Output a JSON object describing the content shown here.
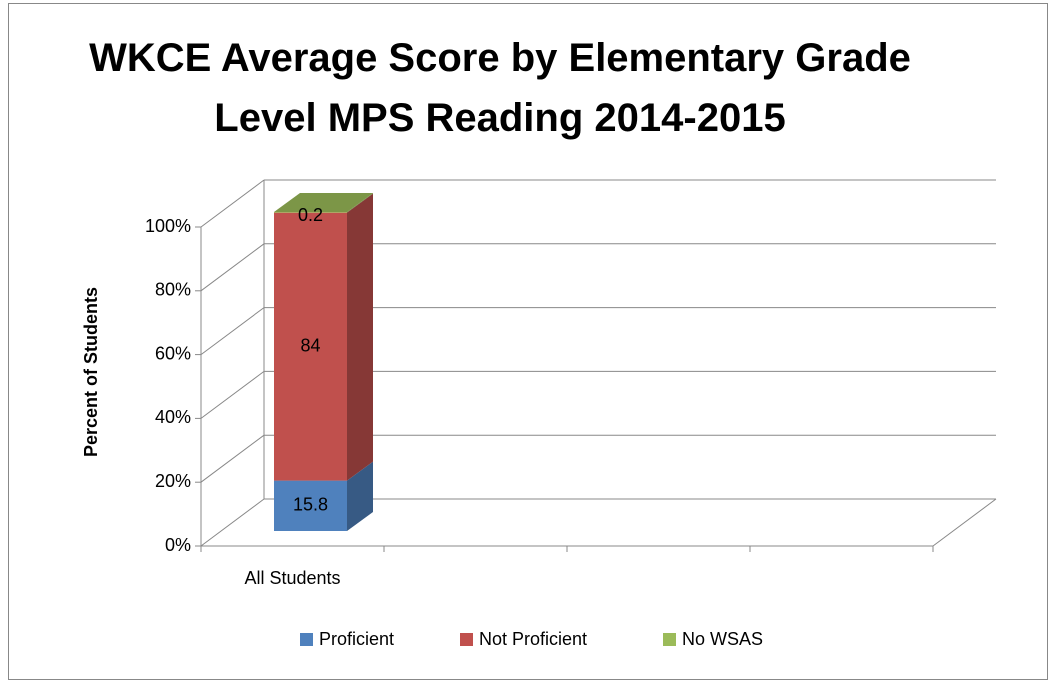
{
  "chart_data": {
    "type": "bar3d_stacked",
    "title": "WKCE Average Score by Elementary Grade Level MPS Reading 2014-2015",
    "y_label": "Percent of Students",
    "categories": [
      "All Students",
      null,
      null,
      null
    ],
    "series": [
      {
        "name": "Proficient",
        "color": "#4f81bd",
        "values": [
          15.8,
          null,
          null,
          null
        ]
      },
      {
        "name": "Not Proficient",
        "color": "#c0504d",
        "values": [
          84,
          null,
          null,
          null
        ]
      },
      {
        "name": "No WSAS",
        "color": "#9bbb59",
        "values": [
          0.2,
          null,
          null,
          null
        ]
      }
    ],
    "ylim": [
      0,
      100
    ],
    "yticks": [
      {
        "value": 0,
        "label": "0%"
      },
      {
        "value": 20,
        "label": "20%"
      },
      {
        "value": 40,
        "label": "40%"
      },
      {
        "value": 60,
        "label": "60%"
      },
      {
        "value": 80,
        "label": "80%"
      },
      {
        "value": 100,
        "label": "100%"
      }
    ],
    "grid": true,
    "legend": "bottom"
  }
}
